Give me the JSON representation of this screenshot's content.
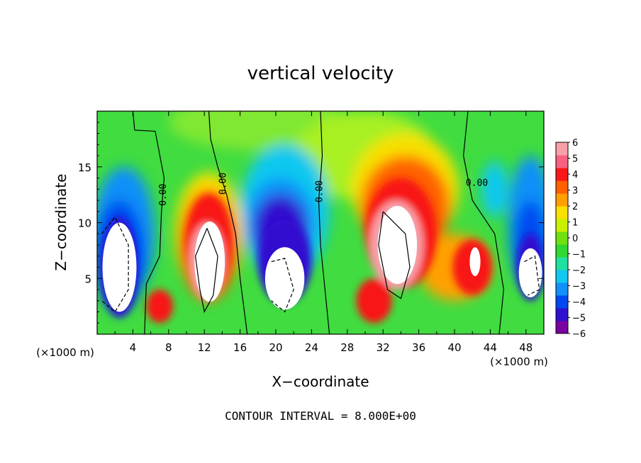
{
  "chart_data": {
    "type": "heatmap",
    "title": "vertical velocity",
    "xlabel": "X−coordinate",
    "ylabel": "Z−coordinate",
    "x_unit_left": "(×1000 m)",
    "x_unit_right": "(×1000 m)",
    "footer": "CONTOUR INTERVAL = 8.000E+00",
    "xlim": [
      0,
      50
    ],
    "ylim": [
      0,
      20
    ],
    "x_ticks": [
      4,
      8,
      12,
      16,
      20,
      24,
      28,
      32,
      36,
      40,
      44,
      48
    ],
    "x_tick_labels": [
      "4",
      "8",
      "12",
      "16",
      "20",
      "24",
      "28",
      "32",
      "36",
      "40",
      "44",
      "48"
    ],
    "y_ticks": [
      5,
      10,
      15
    ],
    "y_tick_labels": [
      "5",
      "10",
      "15"
    ],
    "contour_labels": [
      "0.00",
      "0.00",
      "0.00",
      "0.00"
    ],
    "colorbar": {
      "min": -6,
      "max": 6,
      "tick_labels": [
        "6",
        "5",
        "4",
        "3",
        "2",
        "1",
        "0",
        "−1",
        "−2",
        "−3",
        "−4",
        "−5",
        "−6"
      ],
      "colors": [
        "#7a00a0",
        "#3010d0",
        "#0048f0",
        "#1090f8",
        "#10c8f0",
        "#20e0a0",
        "#30d830",
        "#70e010",
        "#c8f000",
        "#f8e000",
        "#ffa000",
        "#ff6000",
        "#f81818",
        "#f86080",
        "#f8a0a8"
      ]
    },
    "features": [
      {
        "name": "updraft core",
        "x": 12.5,
        "z": 6.5,
        "peak": 6
      },
      {
        "name": "updraft core",
        "x": 34,
        "z": 8,
        "peak": 6
      },
      {
        "name": "downdraft core",
        "x": 2.5,
        "z": 6.5,
        "peak": -6
      },
      {
        "name": "downdraft core",
        "x": 21,
        "z": 5,
        "peak": -6
      },
      {
        "name": "downdraft core",
        "x": 48.5,
        "z": 5,
        "peak": -6
      }
    ]
  }
}
